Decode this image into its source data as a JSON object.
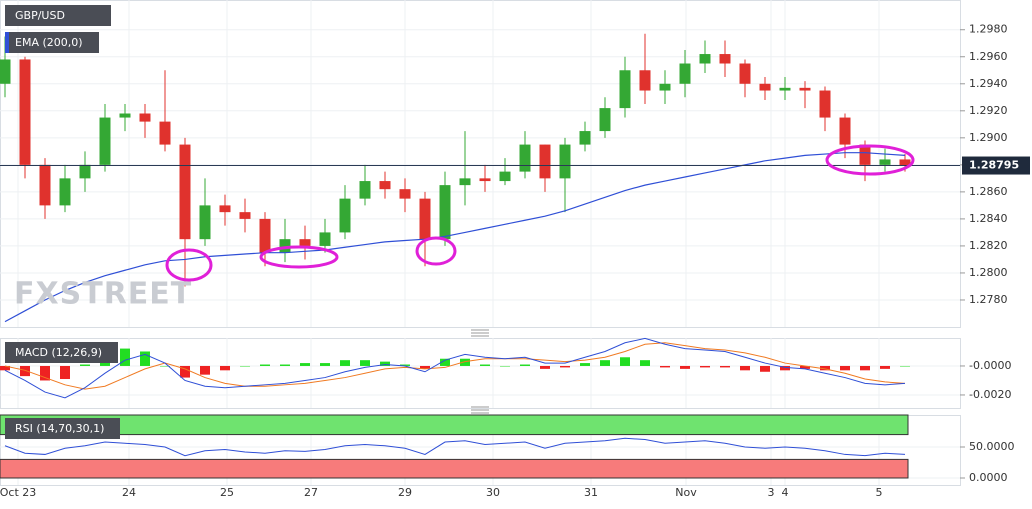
{
  "chart_data": [
    {
      "type": "candlestick",
      "title": "GBP/USD",
      "watermark": "FXSTREET",
      "x": [
        0,
        1,
        2,
        3,
        4,
        5,
        6,
        7,
        8,
        9,
        10,
        11,
        12,
        13,
        14,
        15,
        16,
        17,
        18,
        19,
        20,
        21,
        22,
        23,
        24,
        25,
        26,
        27,
        28,
        29,
        30,
        31,
        32,
        33,
        34,
        35,
        36,
        37,
        38,
        39,
        40,
        41,
        42,
        43,
        44,
        45
      ],
      "open": [
        1.294,
        1.2958,
        1.288,
        1.285,
        1.287,
        1.288,
        1.2915,
        1.2918,
        1.2912,
        1.2895,
        1.2825,
        1.285,
        1.2845,
        1.284,
        1.2815,
        1.2825,
        1.282,
        1.283,
        1.2855,
        1.2868,
        1.2862,
        1.2855,
        1.2825,
        1.2865,
        1.287,
        1.2868,
        1.2875,
        1.2895,
        1.287,
        1.2895,
        1.2905,
        1.2922,
        1.295,
        1.2935,
        1.294,
        1.2955,
        1.2962,
        1.2955,
        1.294,
        1.2935,
        1.2937,
        1.2935,
        1.2915,
        1.2895,
        1.288,
        1.2884
      ],
      "high": [
        1.2975,
        1.296,
        1.2885,
        1.288,
        1.289,
        1.2925,
        1.2925,
        1.2925,
        1.295,
        1.29,
        1.287,
        1.2858,
        1.2855,
        1.2845,
        1.284,
        1.2835,
        1.284,
        1.2865,
        1.288,
        1.2875,
        1.287,
        1.286,
        1.2875,
        1.2905,
        1.288,
        1.2885,
        1.2905,
        1.2895,
        1.29,
        1.2912,
        1.293,
        1.296,
        1.2977,
        1.295,
        1.2965,
        1.2972,
        1.2972,
        1.2958,
        1.2945,
        1.2945,
        1.2942,
        1.2938,
        1.2918,
        1.2898,
        1.2892,
        1.2888
      ],
      "low": [
        1.293,
        1.287,
        1.284,
        1.2845,
        1.286,
        1.2875,
        1.2905,
        1.29,
        1.289,
        1.279,
        1.282,
        1.2835,
        1.283,
        1.2805,
        1.2808,
        1.281,
        1.2815,
        1.2825,
        1.285,
        1.2855,
        1.2845,
        1.2805,
        1.282,
        1.285,
        1.286,
        1.2865,
        1.287,
        1.286,
        1.2845,
        1.289,
        1.29,
        1.2915,
        1.2925,
        1.2925,
        1.293,
        1.2948,
        1.2945,
        1.293,
        1.2928,
        1.2928,
        1.2922,
        1.2905,
        1.2885,
        1.2868,
        1.2875,
        1.2875
      ],
      "close": [
        1.2958,
        1.288,
        1.285,
        1.287,
        1.288,
        1.2915,
        1.2918,
        1.2912,
        1.2895,
        1.2825,
        1.285,
        1.2845,
        1.284,
        1.2815,
        1.2825,
        1.282,
        1.283,
        1.2855,
        1.2868,
        1.2862,
        1.2855,
        1.2825,
        1.2865,
        1.287,
        1.2868,
        1.2875,
        1.2895,
        1.287,
        1.2895,
        1.2905,
        1.2922,
        1.295,
        1.2935,
        1.294,
        1.2955,
        1.2962,
        1.2955,
        1.294,
        1.2935,
        1.2937,
        1.2935,
        1.2915,
        1.2895,
        1.288,
        1.2884,
        1.28795
      ],
      "up_color": "#34a834",
      "down_color": "#e0322d",
      "series": [
        {
          "name": "EMA (200,0)",
          "color": "#2f4fd6",
          "values": [
            1.2764,
            1.2772,
            1.278,
            1.2787,
            1.2793,
            1.2798,
            1.2802,
            1.2806,
            1.2809,
            1.281,
            1.2812,
            1.2813,
            1.2814,
            1.2815,
            1.2815,
            1.2816,
            1.2817,
            1.2819,
            1.2821,
            1.2823,
            1.2824,
            1.2825,
            1.2827,
            1.283,
            1.2833,
            1.2836,
            1.2839,
            1.2842,
            1.2846,
            1.2851,
            1.2856,
            1.2861,
            1.2865,
            1.2868,
            1.2871,
            1.2874,
            1.2877,
            1.288,
            1.2883,
            1.2885,
            1.2887,
            1.2888,
            1.2889,
            1.2889,
            1.2888,
            1.2887
          ]
        }
      ],
      "last_price": 1.28795,
      "xlim": [
        -0.25,
        47.75
      ],
      "ylim": [
        1.276,
        1.3002
      ],
      "yticks": [
        {
          "value": 1.278,
          "label": "1.2780"
        },
        {
          "value": 1.28,
          "label": "1.2800"
        },
        {
          "value": 1.282,
          "label": "1.2820"
        },
        {
          "value": 1.284,
          "label": "1.2840"
        },
        {
          "value": 1.286,
          "label": "1.2860"
        },
        {
          "value": 1.288,
          "label": "1.2880"
        },
        {
          "value": 1.29,
          "label": "1.2900"
        },
        {
          "value": 1.292,
          "label": "1.2920"
        },
        {
          "value": 1.294,
          "label": "1.2940"
        },
        {
          "value": 1.296,
          "label": "1.2960"
        },
        {
          "value": 1.298,
          "label": "1.2980"
        }
      ],
      "xticks": [
        {
          "value": 0.65,
          "label": "Oct  23"
        },
        {
          "value": 6.2,
          "label": "24"
        },
        {
          "value": 11.1,
          "label": "25"
        },
        {
          "value": 15.3,
          "label": "27"
        },
        {
          "value": 20,
          "label": "29"
        },
        {
          "value": 24.4,
          "label": "30"
        },
        {
          "value": 29.3,
          "label": "31"
        },
        {
          "value": 34.05,
          "label": "Nov"
        },
        {
          "value": 38.3,
          "label": "3"
        },
        {
          "value": 39,
          "label": "4"
        },
        {
          "value": 43.7,
          "label": "5"
        }
      ],
      "grid": true
    },
    {
      "type": "macd",
      "title": "MACD (12,26,9)",
      "histogram": {
        "up_color": "#22dd22",
        "down_color": "#ee2222",
        "values": [
          -0.0003,
          -0.0007,
          -0.001,
          -0.0009,
          0.0001,
          0.0009,
          0.0012,
          0.001,
          0.0,
          -0.0008,
          -0.0006,
          -0.0003,
          0.0,
          0.0001,
          0.0001,
          0.0002,
          0.0002,
          0.0004,
          0.0004,
          0.0003,
          0.0001,
          -0.0002,
          0.0005,
          0.0005,
          0.0001,
          0.0,
          0.0001,
          -0.0002,
          -0.0001,
          0.0002,
          0.0004,
          0.0006,
          0.0004,
          -0.0001,
          -0.0002,
          -0.0001,
          -0.0001,
          -0.0003,
          -0.0004,
          -0.0003,
          -0.0002,
          -0.0003,
          -0.0003,
          -0.0003,
          -0.0002,
          0.0
        ]
      },
      "macd": {
        "color": "#2f4fd6",
        "values": [
          -0.0003,
          -0.001,
          -0.0018,
          -0.0022,
          -0.0015,
          -0.0005,
          0.0004,
          0.0008,
          0.0002,
          -0.001,
          -0.0014,
          -0.0015,
          -0.0014,
          -0.0013,
          -0.0012,
          -0.001,
          -0.0008,
          -0.0004,
          -0.0001,
          0.0001,
          0.0,
          -0.0004,
          0.0004,
          0.0008,
          0.0006,
          0.0005,
          0.0006,
          0.0002,
          0.0002,
          0.0006,
          0.001,
          0.0016,
          0.0019,
          0.0015,
          0.0012,
          0.0011,
          0.001,
          0.0006,
          0.0002,
          -0.0001,
          -0.0002,
          -0.0005,
          -0.0008,
          -0.0012,
          -0.0013,
          -0.0012
        ]
      },
      "signal": {
        "color": "#f07a22",
        "values": [
          0.0,
          -0.0003,
          -0.0008,
          -0.0013,
          -0.0016,
          -0.0014,
          -0.0008,
          -0.0002,
          0.0002,
          -0.0002,
          -0.0008,
          -0.0012,
          -0.0014,
          -0.0014,
          -0.0013,
          -0.0012,
          -0.001,
          -0.0008,
          -0.0005,
          -0.0002,
          -0.0001,
          -0.0002,
          -0.0001,
          0.0003,
          0.0005,
          0.0005,
          0.0005,
          0.0004,
          0.0003,
          0.0004,
          0.0006,
          0.001,
          0.0015,
          0.0016,
          0.0014,
          0.0012,
          0.0011,
          0.0009,
          0.0006,
          0.0002,
          0.0,
          -0.0002,
          -0.0005,
          -0.0009,
          -0.0011,
          -0.0012
        ]
      },
      "ylim": [
        -0.0029,
        0.00193
      ],
      "yticks": [
        {
          "value": 0,
          "label": "-0.0000"
        },
        {
          "value": -0.002,
          "label": "-0.0020"
        }
      ]
    },
    {
      "type": "rsi",
      "title": "RSI (14,70,30,1)",
      "color": "#2f4fd6",
      "values": [
        52,
        40,
        38,
        48,
        52,
        58,
        56,
        54,
        50,
        36,
        44,
        46,
        42,
        40,
        44,
        43,
        46,
        52,
        54,
        52,
        48,
        38,
        58,
        60,
        54,
        56,
        58,
        48,
        56,
        58,
        60,
        64,
        62,
        56,
        58,
        60,
        56,
        50,
        48,
        50,
        48,
        44,
        38,
        36,
        40,
        38
      ],
      "upper": 70,
      "lower": 30,
      "upper_color": "#6fe36f",
      "lower_color": "#f77b7b",
      "ylim": [
        -11.3,
        101.6
      ],
      "yticks": [
        {
          "value": 50,
          "label": "50.0000"
        },
        {
          "value": 0,
          "label": "0.0000"
        }
      ]
    }
  ]
}
